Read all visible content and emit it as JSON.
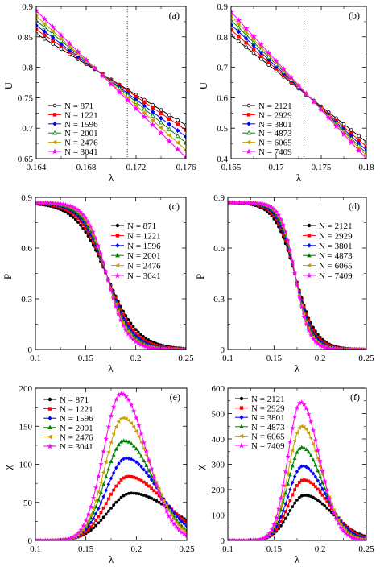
{
  "colors": {
    "black": "#000000",
    "red": "#ff0000",
    "blue": "#0000ff",
    "green": "#008000",
    "gold": "#c8a000",
    "magenta": "#ff00ff"
  },
  "chart_data": [
    {
      "type": "line",
      "panel_label": "(a)",
      "xlabel": "λ",
      "ylabel": "U",
      "xlim": [
        0.164,
        0.176
      ],
      "ylim": [
        0.65,
        0.9
      ],
      "xticks": [
        0.164,
        0.168,
        0.172,
        0.176
      ],
      "xtick_labels": [
        "0.164",
        "0.168",
        "0.172",
        "0.176"
      ],
      "yticks": [
        0.65,
        0.7,
        0.75,
        0.8,
        0.85,
        0.9
      ],
      "ytick_labels": [
        "0.65",
        "0.7",
        "0.75",
        "0.8",
        "0.85",
        "0.9"
      ],
      "vline": 0.1713,
      "legend_position": "lower-left",
      "markers": "hollow-circle,square,diamond,triangle,left-triangle,star",
      "series": [
        {
          "name": "N = 871",
          "color": "#000000",
          "x": [
            0.164,
            0.176
          ],
          "y": [
            0.855,
            0.705
          ]
        },
        {
          "name": "N = 1221",
          "color": "#ff0000",
          "x": [
            0.164,
            0.176
          ],
          "y": [
            0.862,
            0.697
          ]
        },
        {
          "name": "N = 1596",
          "color": "#0000ff",
          "x": [
            0.164,
            0.176
          ],
          "y": [
            0.869,
            0.686
          ]
        },
        {
          "name": "N = 2001",
          "color": "#008000",
          "x": [
            0.164,
            0.176
          ],
          "y": [
            0.877,
            0.676
          ]
        },
        {
          "name": "N = 2476",
          "color": "#c8a000",
          "x": [
            0.164,
            0.176
          ],
          "y": [
            0.884,
            0.664
          ]
        },
        {
          "name": "N = 3041",
          "color": "#ff00ff",
          "x": [
            0.164,
            0.176
          ],
          "y": [
            0.893,
            0.652
          ]
        }
      ]
    },
    {
      "type": "line",
      "panel_label": "(b)",
      "xlabel": "λ",
      "ylabel": "U",
      "xlim": [
        0.165,
        0.18
      ],
      "ylim": [
        0.4,
        0.9
      ],
      "xticks": [
        0.165,
        0.17,
        0.175,
        0.18
      ],
      "xtick_labels": [
        "0.165",
        "0.17",
        "0.175",
        "0.18"
      ],
      "yticks": [
        0.4,
        0.5,
        0.6,
        0.7,
        0.8,
        0.9
      ],
      "ytick_labels": [
        "0.4",
        "0.5",
        "0.6",
        "0.7",
        "0.8",
        "0.9"
      ],
      "vline": 0.1731,
      "legend_position": "lower-left",
      "series": [
        {
          "name": "N = 2121",
          "color": "#000000",
          "x": [
            0.165,
            0.18
          ],
          "y": [
            0.805,
            0.455
          ]
        },
        {
          "name": "N = 2929",
          "color": "#ff0000",
          "x": [
            0.165,
            0.18
          ],
          "y": [
            0.823,
            0.44
          ]
        },
        {
          "name": "N = 3801",
          "color": "#0000ff",
          "x": [
            0.165,
            0.18
          ],
          "y": [
            0.84,
            0.428
          ]
        },
        {
          "name": "N = 4873",
          "color": "#008000",
          "x": [
            0.165,
            0.18
          ],
          "y": [
            0.855,
            0.418
          ]
        },
        {
          "name": "N = 6065",
          "color": "#c8a000",
          "x": [
            0.165,
            0.18
          ],
          "y": [
            0.868,
            0.41
          ]
        },
        {
          "name": "N = 7409",
          "color": "#ff00ff",
          "x": [
            0.165,
            0.18
          ],
          "y": [
            0.882,
            0.4
          ]
        }
      ]
    },
    {
      "type": "line",
      "panel_label": "(c)",
      "xlabel": "λ",
      "ylabel": "P",
      "xlim": [
        0.1,
        0.25
      ],
      "ylim": [
        0,
        0.9
      ],
      "xticks": [
        0.1,
        0.15,
        0.2,
        0.25
      ],
      "xtick_labels": [
        "0.1",
        "0.15",
        "0.2",
        "0.25"
      ],
      "yticks": [
        0,
        0.3,
        0.6,
        0.9
      ],
      "ytick_labels": [
        "0",
        "0.3",
        "0.6",
        "0.9"
      ],
      "legend_position": "top-right",
      "crossover": 0.1713,
      "p_max": 0.87,
      "series": [
        {
          "name": "N = 871",
          "color": "#000000",
          "width": 0.0155
        },
        {
          "name": "N = 1221",
          "color": "#ff0000",
          "width": 0.0138
        },
        {
          "name": "N = 1596",
          "color": "#0000ff",
          "width": 0.0126
        },
        {
          "name": "N = 2001",
          "color": "#008000",
          "width": 0.0116
        },
        {
          "name": "N = 2476",
          "color": "#c8a000",
          "width": 0.0107
        },
        {
          "name": "N = 3041",
          "color": "#ff00ff",
          "width": 0.0099
        }
      ]
    },
    {
      "type": "line",
      "panel_label": "(d)",
      "xlabel": "λ",
      "ylabel": "P",
      "xlim": [
        0.1,
        0.25
      ],
      "ylim": [
        0,
        0.9
      ],
      "xticks": [
        0.1,
        0.15,
        0.2,
        0.25
      ],
      "xtick_labels": [
        "0.1",
        "0.15",
        "0.2",
        "0.25"
      ],
      "yticks": [
        0,
        0.3,
        0.6,
        0.9
      ],
      "ytick_labels": [
        "0",
        "0.3",
        "0.6",
        "0.9"
      ],
      "legend_position": "top-right",
      "crossover": 0.1731,
      "p_max": 0.87,
      "series": [
        {
          "name": "N = 2121",
          "color": "#000000",
          "width": 0.0112
        },
        {
          "name": "N = 2929",
          "color": "#ff0000",
          "width": 0.0102
        },
        {
          "name": "N = 3801",
          "color": "#0000ff",
          "width": 0.0094
        },
        {
          "name": "N = 4873",
          "color": "#008000",
          "width": 0.0087
        },
        {
          "name": "N = 6065",
          "color": "#c8a000",
          "width": 0.0081
        },
        {
          "name": "N = 7409",
          "color": "#ff00ff",
          "width": 0.0076
        }
      ]
    },
    {
      "type": "line",
      "panel_label": "(e)",
      "xlabel": "λ",
      "ylabel": "χ",
      "xlim": [
        0.1,
        0.25
      ],
      "ylim": [
        0,
        200
      ],
      "xticks": [
        0.1,
        0.15,
        0.2,
        0.25
      ],
      "xtick_labels": [
        "0.1",
        "0.15",
        "0.2",
        "0.25"
      ],
      "yticks": [
        0,
        50,
        100,
        150,
        200
      ],
      "ytick_labels": [
        "0",
        "50",
        "100",
        "150",
        "200"
      ],
      "legend_position": "top-left",
      "series": [
        {
          "name": "N = 871",
          "color": "#000000",
          "peak_x": 0.195,
          "peak_y": 62,
          "left_width": 0.023,
          "right_width": 0.042
        },
        {
          "name": "N = 1221",
          "color": "#ff0000",
          "peak_x": 0.192,
          "peak_y": 84,
          "left_width": 0.021,
          "right_width": 0.036
        },
        {
          "name": "N = 1596",
          "color": "#0000ff",
          "peak_x": 0.19,
          "peak_y": 108,
          "left_width": 0.02,
          "right_width": 0.032
        },
        {
          "name": "N = 2001",
          "color": "#008000",
          "peak_x": 0.188,
          "peak_y": 131,
          "left_width": 0.019,
          "right_width": 0.029
        },
        {
          "name": "N = 2476",
          "color": "#c8a000",
          "peak_x": 0.187,
          "peak_y": 161,
          "left_width": 0.018,
          "right_width": 0.027
        },
        {
          "name": "N = 3041",
          "color": "#ff00ff",
          "peak_x": 0.185,
          "peak_y": 193,
          "left_width": 0.0175,
          "right_width": 0.025
        }
      ]
    },
    {
      "type": "line",
      "panel_label": "(f)",
      "xlabel": "λ",
      "ylabel": "χ",
      "xlim": [
        0.1,
        0.25
      ],
      "ylim": [
        0,
        600
      ],
      "xticks": [
        0.1,
        0.15,
        0.2,
        0.25
      ],
      "xtick_labels": [
        "0.1",
        "0.15",
        "0.2",
        "0.25"
      ],
      "yticks": [
        0,
        100,
        200,
        300,
        400,
        500,
        600
      ],
      "ytick_labels": [
        "0",
        "100",
        "200",
        "300",
        "400",
        "500",
        "600"
      ],
      "legend_position": "top-left",
      "series": [
        {
          "name": "N = 2121",
          "color": "#000000",
          "peak_x": 0.183,
          "peak_y": 178,
          "left_width": 0.017,
          "right_width": 0.03
        },
        {
          "name": "N = 2929",
          "color": "#ff0000",
          "peak_x": 0.182,
          "peak_y": 238,
          "left_width": 0.016,
          "right_width": 0.027
        },
        {
          "name": "N = 3801",
          "color": "#0000ff",
          "peak_x": 0.181,
          "peak_y": 293,
          "left_width": 0.0155,
          "right_width": 0.025
        },
        {
          "name": "N = 4873",
          "color": "#008000",
          "peak_x": 0.18,
          "peak_y": 367,
          "left_width": 0.015,
          "right_width": 0.023
        },
        {
          "name": "N = 6065",
          "color": "#c8a000",
          "peak_x": 0.18,
          "peak_y": 450,
          "left_width": 0.0145,
          "right_width": 0.0215
        },
        {
          "name": "N = 7409",
          "color": "#ff00ff",
          "peak_x": 0.179,
          "peak_y": 545,
          "left_width": 0.014,
          "right_width": 0.02
        }
      ]
    }
  ]
}
